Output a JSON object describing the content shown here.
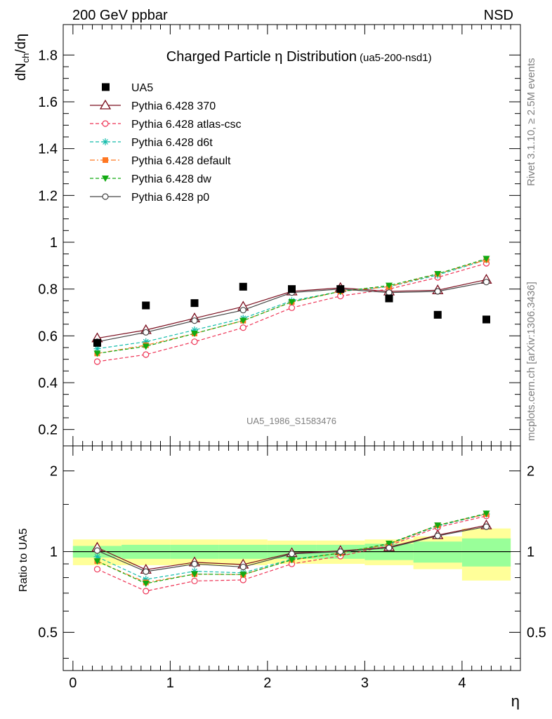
{
  "header": {
    "left": "200 GeV ppbar",
    "right": "NSD"
  },
  "side": {
    "rivet": "Rivet 3.1.10, ≥ 2.5M events",
    "mcplots": "mcplots.cern.ch [arXiv:1306.3436]"
  },
  "chart_data": [
    {
      "type": "line",
      "title": "Charged Particle η Distribution",
      "subtitle": "(ua5-200-nsd1)",
      "watermark": "UA5_1986_S1583476",
      "ylabel": "dN_ch/dη",
      "xlim": [
        -0.1,
        4.6
      ],
      "ylim": [
        0.13,
        1.93
      ],
      "yticks": [
        0.2,
        0.4,
        0.6,
        0.8,
        1.0,
        1.2,
        1.4,
        1.6,
        1.8
      ],
      "ytick_labels": [
        "0.2",
        "0.4",
        "0.6",
        "0.8",
        "1",
        "1.2",
        "1.4",
        "1.6",
        "1.8"
      ],
      "x": [
        0.25,
        0.75,
        1.25,
        1.75,
        2.25,
        2.75,
        3.25,
        3.75,
        4.25
      ],
      "data": {
        "name": "UA5",
        "values": [
          0.57,
          0.73,
          0.74,
          0.81,
          0.8,
          0.8,
          0.76,
          0.69,
          0.67
        ]
      },
      "series": [
        {
          "name": "Pythia 6.428 370",
          "color": "#7a0e1e",
          "dash": "solid",
          "marker": "triangle-open",
          "values": [
            0.59,
            0.625,
            0.675,
            0.725,
            0.79,
            0.805,
            0.79,
            0.795,
            0.84
          ]
        },
        {
          "name": "Pythia 6.428 atlas-csc",
          "color": "#ee3355",
          "dash": "dashed",
          "marker": "circle-open",
          "values": [
            0.49,
            0.52,
            0.575,
            0.635,
            0.72,
            0.77,
            0.8,
            0.85,
            0.91
          ]
        },
        {
          "name": "Pythia 6.428 d6t",
          "color": "#11bbaa",
          "dash": "dashed",
          "marker": "asterisk",
          "values": [
            0.545,
            0.575,
            0.625,
            0.675,
            0.75,
            0.79,
            0.81,
            0.86,
            0.925
          ]
        },
        {
          "name": "Pythia 6.428 default",
          "color": "#ff7722",
          "dash": "dashdot",
          "marker": "square",
          "values": [
            0.525,
            0.56,
            0.61,
            0.665,
            0.745,
            0.79,
            0.81,
            0.865,
            0.925
          ]
        },
        {
          "name": "Pythia 6.428 dw",
          "color": "#11aa11",
          "dash": "dashed",
          "marker": "triangle-down",
          "values": [
            0.525,
            0.555,
            0.61,
            0.665,
            0.745,
            0.79,
            0.815,
            0.865,
            0.93
          ]
        },
        {
          "name": "Pythia 6.428 p0",
          "color": "#444444",
          "dash": "solid",
          "marker": "circle-open",
          "values": [
            0.575,
            0.615,
            0.665,
            0.71,
            0.785,
            0.8,
            0.785,
            0.79,
            0.83
          ]
        }
      ]
    },
    {
      "type": "line",
      "ylabel": "Ratio to UA5",
      "xlabel": "η",
      "xlim": [
        -0.1,
        4.6
      ],
      "ylim": [
        0.36,
        2.48
      ],
      "yscale": "log",
      "yticks": [
        0.5,
        1,
        2
      ],
      "ytick_labels": [
        "0.5",
        "1",
        "2"
      ],
      "xticks": [
        0,
        1,
        2,
        3,
        4
      ],
      "xtick_labels": [
        "0",
        "1",
        "2",
        "3",
        "4"
      ],
      "bands": {
        "edges": [
          0,
          0.5,
          1.0,
          1.5,
          2.0,
          2.5,
          3.0,
          3.5,
          4.0,
          4.5
        ],
        "inner": [
          [
            0.95,
            1.05
          ],
          [
            0.94,
            1.06
          ],
          [
            0.94,
            1.06
          ],
          [
            0.94,
            1.06
          ],
          [
            0.94,
            1.06
          ],
          [
            0.94,
            1.06
          ],
          [
            0.93,
            1.07
          ],
          [
            0.91,
            1.09
          ],
          [
            0.88,
            1.12
          ]
        ],
        "outer": [
          [
            0.89,
            1.11
          ],
          [
            0.89,
            1.11
          ],
          [
            0.89,
            1.11
          ],
          [
            0.89,
            1.11
          ],
          [
            0.9,
            1.1
          ],
          [
            0.9,
            1.1
          ],
          [
            0.89,
            1.11
          ],
          [
            0.86,
            1.14
          ],
          [
            0.78,
            1.22
          ]
        ]
      }
    }
  ]
}
